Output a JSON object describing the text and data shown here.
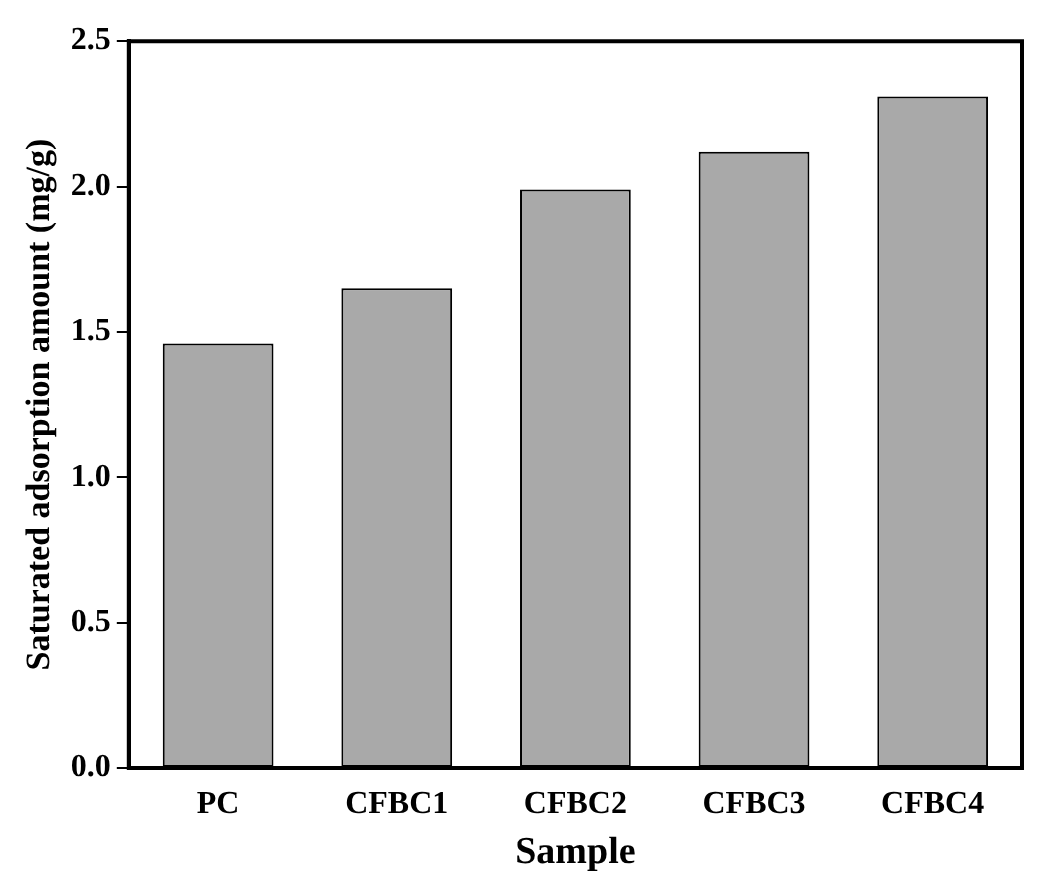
{
  "chart_data": {
    "type": "bar",
    "xlabel": "Sample",
    "ylabel": "Saturated adsorption amount (mg/g)",
    "categories": [
      "PC",
      "CFBC1",
      "CFBC2",
      "CFBC3",
      "CFBC4"
    ],
    "values": [
      1.46,
      1.65,
      1.99,
      2.12,
      2.31
    ],
    "color": "#a9a9a9",
    "ylim": [
      0,
      2.5
    ],
    "yticks": [
      {
        "value": 0,
        "label": "0.0"
      },
      0.5,
      {
        "value": 1,
        "label": "1.0"
      },
      1.5,
      {
        "value": 2,
        "label": "2.0"
      },
      2.5
    ],
    "grid": false,
    "legend": false
  }
}
